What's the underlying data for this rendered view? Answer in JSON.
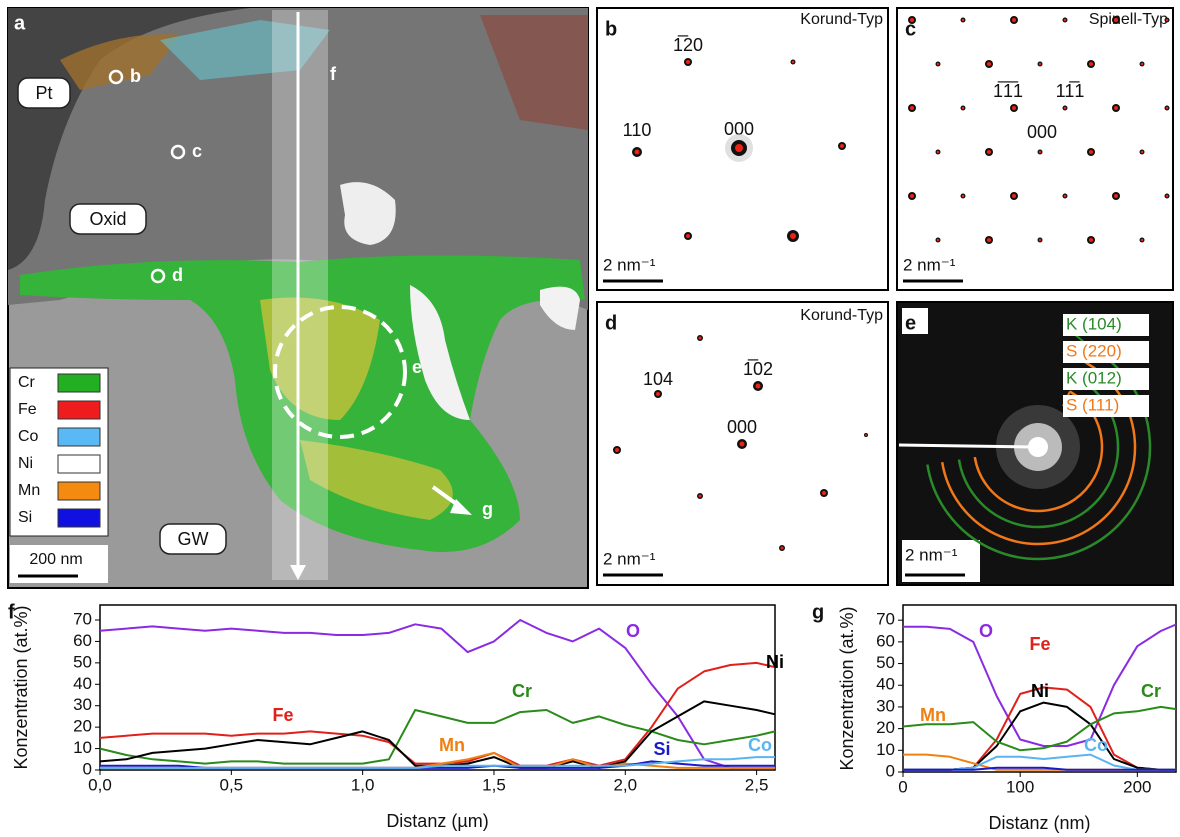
{
  "panel_a": {
    "label": "a",
    "regions": [
      "Pt",
      "Oxid",
      "GW"
    ],
    "points": [
      "b",
      "c",
      "d",
      "e",
      "f",
      "g"
    ],
    "legend": [
      {
        "name": "Cr",
        "color": "#22b022"
      },
      {
        "name": "Fe",
        "color": "#ee1c1c"
      },
      {
        "name": "Co",
        "color": "#5ab8f5"
      },
      {
        "name": "Ni",
        "color": "#ffffff"
      },
      {
        "name": "Mn",
        "color": "#f58a10"
      },
      {
        "name": "Si",
        "color": "#1010e0"
      }
    ],
    "scale_bar": "200 nm"
  },
  "panel_b": {
    "label": "b",
    "type_label": "Korund-Typ",
    "spots": [
      "1̅20",
      "110",
      "000"
    ],
    "scale_bar": "2 nm⁻¹"
  },
  "panel_c": {
    "label": "c",
    "type_label": "Spinell-Typ",
    "spots": [
      "1̅1̅1",
      "11̅1",
      "000"
    ],
    "scale_bar": "2 nm⁻¹"
  },
  "panel_d": {
    "label": "d",
    "type_label": "Korund-Typ",
    "spots": [
      "104",
      "1̅02",
      "000"
    ],
    "scale_bar": "2 nm⁻¹"
  },
  "panel_e": {
    "label": "e",
    "rings": [
      {
        "text": "K (104)",
        "color": "#2a8a2a"
      },
      {
        "text": "S (220)",
        "color": "#f07818"
      },
      {
        "text": "K (012)",
        "color": "#2a8a2a"
      },
      {
        "text": "S (111)",
        "color": "#f07818"
      }
    ],
    "scale_bar": "2 nm⁻¹"
  },
  "chart_data": [
    {
      "type": "line",
      "panel_label": "f",
      "x_label": "Distanz (µm)",
      "y_label": "Konzentration (at.%)",
      "x": [
        0,
        0.1,
        0.2,
        0.3,
        0.4,
        0.5,
        0.6,
        0.7,
        0.8,
        0.9,
        1.0,
        1.1,
        1.2,
        1.3,
        1.4,
        1.5,
        1.6,
        1.7,
        1.8,
        1.9,
        2.0,
        2.1,
        2.2,
        2.3,
        2.4,
        2.5,
        2.57
      ],
      "xlim": [
        0,
        2.57
      ],
      "ylim": [
        0,
        77
      ],
      "xticks": [
        {
          "value": 0,
          "label": "0,0"
        },
        {
          "value": 0.5,
          "label": "0,5"
        },
        {
          "value": 1,
          "label": "1,0"
        },
        {
          "value": 1.5,
          "label": "1,5"
        },
        {
          "value": 2,
          "label": "2,0"
        },
        {
          "value": 2.5,
          "label": "2,5"
        }
      ],
      "yticks": [
        0,
        10,
        20,
        30,
        40,
        50,
        60,
        70
      ],
      "series": [
        {
          "name": "O",
          "color": "#8a2be2",
          "values": [
            65,
            66,
            67,
            66,
            65,
            66,
            65,
            64,
            64,
            63,
            63,
            64,
            68,
            66,
            55,
            60,
            70,
            64,
            60,
            66,
            57,
            40,
            25,
            5,
            1,
            1,
            1
          ]
        },
        {
          "name": "Fe",
          "color": "#e0201a",
          "values": [
            15,
            16,
            17,
            17,
            17,
            16,
            17,
            17,
            18,
            17,
            16,
            13,
            3,
            3,
            4,
            8,
            2,
            2,
            5,
            2,
            5,
            20,
            38,
            46,
            49,
            50,
            48
          ]
        },
        {
          "name": "Cr",
          "color": "#2a8a1a",
          "values": [
            10,
            7,
            5,
            4,
            3,
            4,
            4,
            3,
            3,
            3,
            3,
            5,
            28,
            25,
            22,
            22,
            27,
            28,
            22,
            25,
            21,
            18,
            14,
            12,
            14,
            16,
            18
          ]
        },
        {
          "name": "Ni",
          "color": "#000000",
          "values": [
            4,
            5,
            8,
            9,
            10,
            12,
            14,
            13,
            12,
            15,
            18,
            14,
            2,
            2,
            3,
            6,
            1,
            1,
            4,
            1,
            4,
            18,
            25,
            32,
            30,
            28,
            26
          ]
        },
        {
          "name": "Mn",
          "color": "#f08010",
          "values": [
            1,
            1,
            1,
            1,
            1,
            1,
            1,
            1,
            1,
            1,
            1,
            1,
            1,
            3,
            5,
            8,
            1,
            1,
            5,
            1,
            3,
            2,
            1,
            1,
            1,
            1,
            1
          ]
        },
        {
          "name": "Si",
          "color": "#1a1acc",
          "values": [
            2,
            2,
            2,
            2,
            1,
            1,
            1,
            1,
            1,
            1,
            1,
            1,
            1,
            1,
            1,
            2,
            1,
            1,
            1,
            1,
            2,
            4,
            3,
            2,
            2,
            2,
            2
          ]
        },
        {
          "name": "Co",
          "color": "#5ab4f0",
          "values": [
            1,
            1,
            1,
            1,
            1,
            1,
            1,
            1,
            1,
            1,
            1,
            1,
            1,
            2,
            2,
            2,
            2,
            2,
            2,
            2,
            2,
            3,
            4,
            5,
            5,
            6,
            6
          ]
        }
      ]
    },
    {
      "type": "line",
      "panel_label": "g",
      "x_label": "Distanz (nm)",
      "y_label": "Konzentration (at.%)",
      "x": [
        0,
        20,
        40,
        60,
        80,
        100,
        120,
        140,
        160,
        180,
        200,
        220,
        233
      ],
      "xlim": [
        0,
        233
      ],
      "ylim": [
        0,
        77
      ],
      "xticks": [
        0,
        100,
        200
      ],
      "yticks": [
        0,
        10,
        20,
        30,
        40,
        50,
        60,
        70
      ],
      "series": [
        {
          "name": "O",
          "color": "#8a2be2",
          "values": [
            67,
            67,
            66,
            60,
            35,
            15,
            12,
            12,
            15,
            40,
            58,
            65,
            68
          ]
        },
        {
          "name": "Fe",
          "color": "#e0201a",
          "values": [
            1,
            1,
            1,
            2,
            15,
            36,
            39,
            38,
            30,
            8,
            2,
            1,
            1
          ]
        },
        {
          "name": "Ni",
          "color": "#000000",
          "values": [
            1,
            1,
            1,
            2,
            12,
            28,
            32,
            30,
            22,
            6,
            2,
            1,
            1
          ]
        },
        {
          "name": "Cr",
          "color": "#2a8a1a",
          "values": [
            21,
            22,
            22,
            23,
            14,
            10,
            11,
            14,
            22,
            27,
            28,
            30,
            29
          ]
        },
        {
          "name": "Mn",
          "color": "#f08010",
          "values": [
            8,
            8,
            7,
            4,
            1,
            1,
            1,
            1,
            1,
            1,
            1,
            1,
            1
          ]
        },
        {
          "name": "Co",
          "color": "#5ab4f0",
          "values": [
            1,
            1,
            1,
            2,
            7,
            7,
            6,
            7,
            8,
            3,
            1,
            1,
            1
          ]
        },
        {
          "name": "Si",
          "color": "#1a1acc",
          "values": [
            1,
            1,
            1,
            1,
            2,
            2,
            2,
            1,
            1,
            1,
            1,
            1,
            1
          ]
        }
      ]
    }
  ]
}
